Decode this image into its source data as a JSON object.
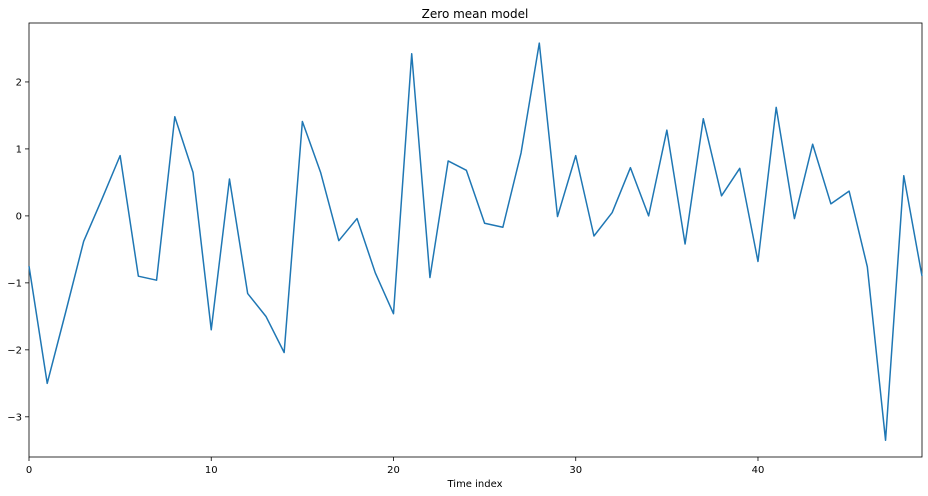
{
  "chart_data": {
    "type": "line",
    "title": "Zero mean model",
    "xlabel": "Time index",
    "ylabel": "",
    "xlim": [
      0,
      49
    ],
    "ylim": [
      -3.6,
      2.88
    ],
    "x_ticks": [
      0,
      10,
      20,
      30,
      40
    ],
    "x_tick_labels": [
      "0",
      "10",
      "20",
      "30",
      "40"
    ],
    "y_ticks": [
      -3,
      -2,
      -1,
      0,
      1,
      2
    ],
    "y_tick_labels": [
      "−3",
      "−2",
      "−1",
      "0",
      "1",
      "2"
    ],
    "grid": false,
    "legend": "none",
    "series": [
      {
        "color": "#1f77b4",
        "x": [
          0,
          1,
          2,
          3,
          4,
          5,
          6,
          7,
          8,
          9,
          10,
          11,
          12,
          13,
          14,
          15,
          16,
          17,
          18,
          19,
          20,
          21,
          22,
          23,
          24,
          25,
          26,
          27,
          28,
          29,
          30,
          31,
          32,
          33,
          34,
          35,
          36,
          37,
          38,
          39,
          40,
          41,
          42,
          43,
          44,
          45,
          46,
          47,
          48,
          49
        ],
        "y": [
          -0.75,
          -2.5,
          -1.45,
          -0.38,
          0.25,
          0.9,
          -0.9,
          -0.96,
          1.48,
          0.65,
          -1.7,
          0.55,
          -1.16,
          -1.5,
          -2.04,
          1.41,
          0.65,
          -0.37,
          -0.04,
          -0.85,
          -1.46,
          2.42,
          -0.92,
          0.82,
          0.68,
          -0.11,
          -0.17,
          0.94,
          2.58,
          -0.01,
          0.9,
          -0.3,
          0.05,
          0.72,
          0.0,
          1.28,
          -0.42,
          1.45,
          0.3,
          0.71,
          -0.68,
          1.62,
          -0.04,
          1.07,
          0.18,
          0.37,
          -0.76,
          -3.35,
          0.6,
          -0.9
        ]
      }
    ]
  }
}
